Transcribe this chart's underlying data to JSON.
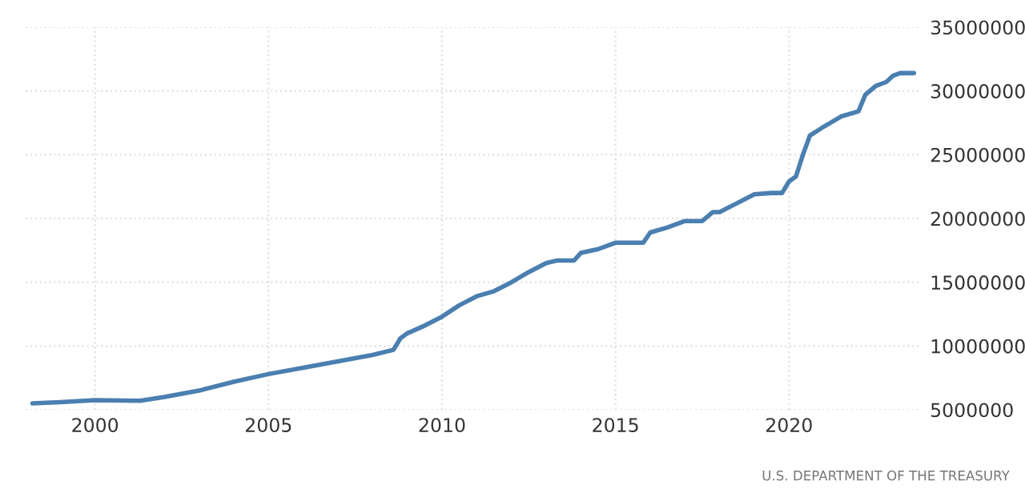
{
  "chart_data": {
    "type": "line",
    "x": [
      1998.2,
      1999,
      2000,
      2001.3,
      2002,
      2003,
      2004,
      2005,
      2006,
      2007,
      2008,
      2008.6,
      2008.8,
      2009,
      2009.5,
      2010,
      2010.5,
      2011,
      2011.5,
      2012,
      2012.5,
      2013,
      2013.3,
      2013.8,
      2014,
      2014.5,
      2015,
      2015.8,
      2016,
      2016.5,
      2017,
      2017.5,
      2017.8,
      2018,
      2018.5,
      2019,
      2019.5,
      2019.8,
      2020,
      2020.2,
      2020.4,
      2020.6,
      2021,
      2021.5,
      2022,
      2022.2,
      2022.5,
      2022.8,
      2023,
      2023.2,
      2023.6
    ],
    "series": [
      {
        "color": "#4a7fb0",
        "values": [
          5500000,
          5600000,
          5750000,
          5700000,
          6000000,
          6500000,
          7200000,
          7800000,
          8300000,
          8800000,
          9300000,
          9700000,
          10600000,
          11000000,
          11600000,
          12300000,
          13200000,
          13900000,
          14300000,
          15000000,
          15800000,
          16500000,
          16700000,
          16700000,
          17300000,
          17600000,
          18100000,
          18100000,
          18900000,
          19300000,
          19800000,
          19800000,
          20500000,
          20500000,
          21200000,
          21900000,
          22000000,
          22000000,
          22900000,
          23300000,
          25000000,
          26500000,
          27200000,
          28000000,
          28400000,
          29700000,
          30400000,
          30700000,
          31200000,
          31400000,
          31400000
        ]
      }
    ],
    "xlim": [
      1998.0,
      2023.8
    ],
    "xticks": [
      2000,
      2005,
      2010,
      2015,
      2020
    ],
    "ylim": [
      5000000,
      35000000
    ],
    "yticks": [
      5000000,
      10000000,
      15000000,
      20000000,
      25000000,
      30000000,
      35000000
    ],
    "grid": true,
    "annotations": [
      "U.S. DEPARTMENT OF THE TREASURY"
    ]
  }
}
